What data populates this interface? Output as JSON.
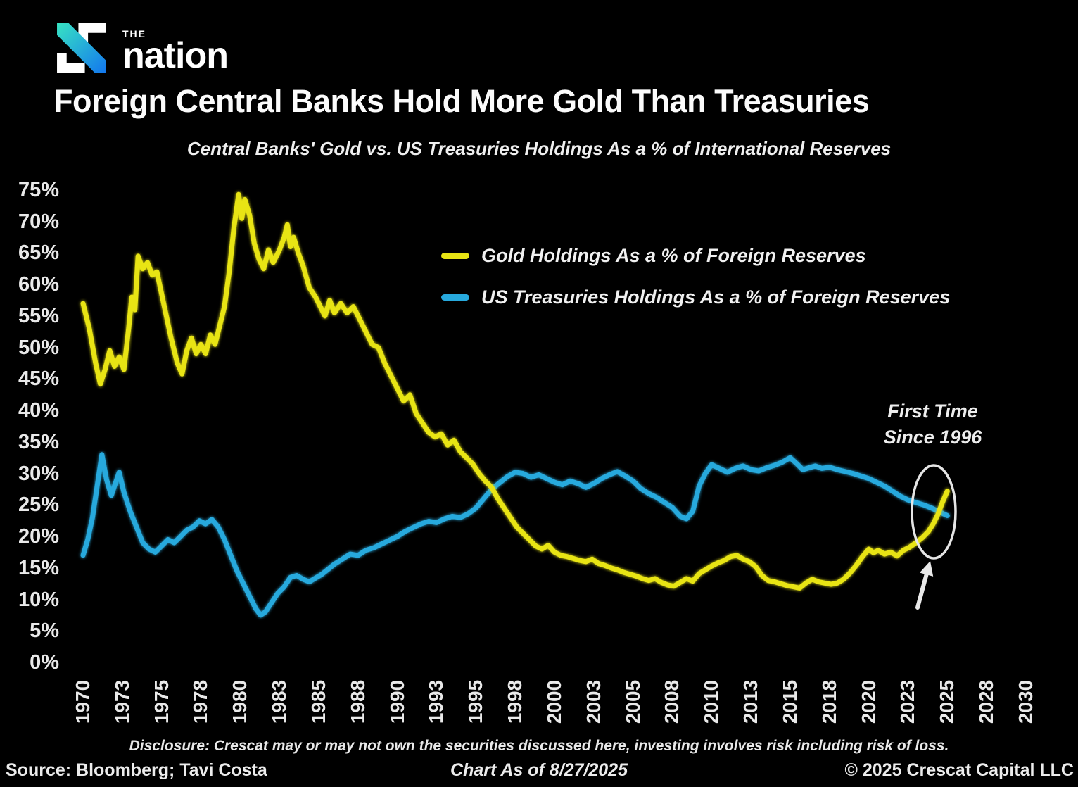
{
  "logo": {
    "the": "THE",
    "name": "nation"
  },
  "header": {
    "title": "Foreign Central Banks Hold More Gold Than Treasuries",
    "subtitle": "Central Banks' Gold vs. US Treasuries Holdings As a % of International Reserves"
  },
  "legend": [
    {
      "label": "Gold Holdings As a % of Foreign Reserves"
    },
    {
      "label": "US Treasuries Holdings As a % of Foreign Reserves"
    }
  ],
  "annotation": {
    "line1": "First Time",
    "line2": "Since 1996"
  },
  "footer": {
    "disclosure": "Disclosure: Crescat may or may not own the securities discussed here, investing involves risk including risk of loss.",
    "source": "Source: Bloomberg; Tavi Costa",
    "as_of": "Chart As of 8/27/2025",
    "copyright": "© 2025 Crescat Capital LLC"
  },
  "colors": {
    "background": "#000000",
    "text": "#f2f2f2",
    "gold": "#e8e414",
    "treasuries": "#27a9dd",
    "annotation": "#e5e5e5"
  },
  "chart_data": {
    "type": "line",
    "title": "Central Banks' Gold vs. US Treasuries Holdings As a % of International Reserves",
    "xlabel": "",
    "ylabel": "",
    "xlim": [
      1970,
      2030
    ],
    "ylim": [
      0,
      75
    ],
    "grid": false,
    "legend_position": "inside-top-right",
    "x_ticks": [
      1970,
      1973,
      1975,
      1978,
      1980,
      1983,
      1985,
      1988,
      1990,
      1993,
      1995,
      1998,
      2000,
      2003,
      2005,
      2008,
      2010,
      2013,
      2015,
      2018,
      2020,
      2023,
      2025,
      2028,
      2030
    ],
    "y_ticks": [
      75,
      70,
      65,
      60,
      55,
      50,
      45,
      40,
      35,
      30,
      25,
      20,
      15,
      10,
      5,
      0
    ],
    "y_tick_format": "percent",
    "annotation": {
      "text": "First Time Since 1996",
      "x": 2024.5,
      "y": 23.9,
      "marker": "ellipse-and-arrow"
    },
    "series": [
      {
        "name": "Gold Holdings As a % of Foreign Reserves",
        "color": "#e8e414",
        "points": [
          [
            1970.0,
            57
          ],
          [
            1970.4,
            53
          ],
          [
            1970.8,
            47.5
          ],
          [
            1971.1,
            44.2
          ],
          [
            1971.4,
            46.5
          ],
          [
            1971.7,
            49.5
          ],
          [
            1972.0,
            47
          ],
          [
            1972.3,
            48.5
          ],
          [
            1972.6,
            46.5
          ],
          [
            1972.9,
            53
          ],
          [
            1973.1,
            58
          ],
          [
            1973.3,
            56
          ],
          [
            1973.5,
            64.5
          ],
          [
            1973.8,
            62.5
          ],
          [
            1974.1,
            63.5
          ],
          [
            1974.4,
            61.5
          ],
          [
            1974.7,
            62
          ],
          [
            1975.0,
            58.5
          ],
          [
            1975.3,
            55
          ],
          [
            1975.6,
            51.5
          ],
          [
            1976.0,
            47.5
          ],
          [
            1976.3,
            45.8
          ],
          [
            1976.6,
            49.5
          ],
          [
            1976.9,
            51.5
          ],
          [
            1977.2,
            49
          ],
          [
            1977.5,
            50.5
          ],
          [
            1977.8,
            49
          ],
          [
            1978.1,
            52
          ],
          [
            1978.4,
            50.5
          ],
          [
            1978.7,
            53.5
          ],
          [
            1979.0,
            56.5
          ],
          [
            1979.3,
            62
          ],
          [
            1979.6,
            69
          ],
          [
            1979.9,
            74.3
          ],
          [
            1980.1,
            70.5
          ],
          [
            1980.3,
            73.5
          ],
          [
            1980.6,
            71
          ],
          [
            1980.9,
            66.5
          ],
          [
            1981.2,
            64
          ],
          [
            1981.5,
            62.5
          ],
          [
            1981.8,
            65.5
          ],
          [
            1982.1,
            63.5
          ],
          [
            1982.5,
            65.5
          ],
          [
            1982.8,
            67.5
          ],
          [
            1983.0,
            69.5
          ],
          [
            1983.2,
            66
          ],
          [
            1983.4,
            67.5
          ],
          [
            1983.7,
            65
          ],
          [
            1984.0,
            63
          ],
          [
            1984.4,
            59.5
          ],
          [
            1984.8,
            58
          ],
          [
            1985.1,
            56.5
          ],
          [
            1985.4,
            55
          ],
          [
            1985.7,
            57.5
          ],
          [
            1986.0,
            55.5
          ],
          [
            1986.4,
            57
          ],
          [
            1986.8,
            55.5
          ],
          [
            1987.2,
            56.5
          ],
          [
            1987.6,
            54.5
          ],
          [
            1988.0,
            52.5
          ],
          [
            1988.4,
            50.5
          ],
          [
            1988.8,
            50
          ],
          [
            1989.2,
            47.5
          ],
          [
            1989.6,
            45.5
          ],
          [
            1990.0,
            43.5
          ],
          [
            1990.4,
            41.5
          ],
          [
            1990.8,
            42.5
          ],
          [
            1991.2,
            39.5
          ],
          [
            1991.6,
            38
          ],
          [
            1992.0,
            36.5
          ],
          [
            1992.4,
            35.8
          ],
          [
            1992.8,
            36.3
          ],
          [
            1993.2,
            34.5
          ],
          [
            1993.6,
            35.3
          ],
          [
            1994.0,
            33.5
          ],
          [
            1994.4,
            32.5
          ],
          [
            1994.8,
            31.5
          ],
          [
            1995.2,
            30
          ],
          [
            1995.6,
            28.8
          ],
          [
            1996.0,
            27.8
          ],
          [
            1996.4,
            26
          ],
          [
            1996.8,
            24.5
          ],
          [
            1997.2,
            23
          ],
          [
            1997.6,
            21.5
          ],
          [
            1998.0,
            20.5
          ],
          [
            1998.4,
            19.5
          ],
          [
            1998.8,
            18.5
          ],
          [
            1999.2,
            18
          ],
          [
            1999.6,
            18.6
          ],
          [
            2000.0,
            17.5
          ],
          [
            2000.4,
            17
          ],
          [
            2000.8,
            16.8
          ],
          [
            2001.2,
            16.5
          ],
          [
            2001.6,
            16.2
          ],
          [
            2002.0,
            16
          ],
          [
            2002.4,
            16.4
          ],
          [
            2002.8,
            15.7
          ],
          [
            2003.2,
            15.4
          ],
          [
            2003.6,
            15
          ],
          [
            2004.0,
            14.7
          ],
          [
            2004.4,
            14.3
          ],
          [
            2004.8,
            14
          ],
          [
            2005.2,
            13.7
          ],
          [
            2005.6,
            13.3
          ],
          [
            2006.0,
            13
          ],
          [
            2006.4,
            13.3
          ],
          [
            2006.8,
            12.7
          ],
          [
            2007.2,
            12.3
          ],
          [
            2007.6,
            12.1
          ],
          [
            2008.0,
            12.7
          ],
          [
            2008.4,
            13.3
          ],
          [
            2008.8,
            12.9
          ],
          [
            2009.2,
            14.1
          ],
          [
            2009.6,
            14.7
          ],
          [
            2010.0,
            15.3
          ],
          [
            2010.4,
            15.8
          ],
          [
            2010.8,
            16.2
          ],
          [
            2011.2,
            16.8
          ],
          [
            2011.6,
            17
          ],
          [
            2012.0,
            16.4
          ],
          [
            2012.4,
            16
          ],
          [
            2012.8,
            15.2
          ],
          [
            2013.2,
            13.8
          ],
          [
            2013.6,
            13
          ],
          [
            2014.0,
            12.8
          ],
          [
            2014.4,
            12.5
          ],
          [
            2014.8,
            12.2
          ],
          [
            2015.2,
            12
          ],
          [
            2015.6,
            11.8
          ],
          [
            2016.0,
            12.6
          ],
          [
            2016.4,
            13.2
          ],
          [
            2016.8,
            12.8
          ],
          [
            2017.2,
            12.6
          ],
          [
            2017.6,
            12.4
          ],
          [
            2018.0,
            12.6
          ],
          [
            2018.4,
            13.2
          ],
          [
            2018.8,
            14.2
          ],
          [
            2019.2,
            15.4
          ],
          [
            2019.6,
            16.8
          ],
          [
            2020.0,
            18
          ],
          [
            2020.3,
            17.4
          ],
          [
            2020.6,
            17.8
          ],
          [
            2021.0,
            17.2
          ],
          [
            2021.4,
            17.5
          ],
          [
            2021.8,
            16.9
          ],
          [
            2022.2,
            17.8
          ],
          [
            2022.6,
            18.3
          ],
          [
            2023.0,
            19
          ],
          [
            2023.4,
            19.8
          ],
          [
            2023.8,
            20.8
          ],
          [
            2024.1,
            22
          ],
          [
            2024.4,
            23.5
          ],
          [
            2024.7,
            25.5
          ],
          [
            2025.0,
            27.2
          ]
        ]
      },
      {
        "name": "US Treasuries Holdings As a % of Foreign Reserves",
        "color": "#27a9dd",
        "points": [
          [
            1970.0,
            17
          ],
          [
            1970.3,
            19.5
          ],
          [
            1970.6,
            23
          ],
          [
            1970.9,
            28
          ],
          [
            1971.2,
            33
          ],
          [
            1971.5,
            29
          ],
          [
            1971.8,
            26.5
          ],
          [
            1972.0,
            28
          ],
          [
            1972.3,
            30.2
          ],
          [
            1972.6,
            27
          ],
          [
            1973.0,
            24
          ],
          [
            1973.4,
            21.5
          ],
          [
            1973.8,
            19
          ],
          [
            1974.2,
            18
          ],
          [
            1974.6,
            17.5
          ],
          [
            1975.0,
            18.5
          ],
          [
            1975.4,
            19.5
          ],
          [
            1975.8,
            19
          ],
          [
            1976.2,
            20
          ],
          [
            1976.6,
            21
          ],
          [
            1977.0,
            21.5
          ],
          [
            1977.4,
            22.5
          ],
          [
            1977.8,
            22
          ],
          [
            1978.2,
            22.7
          ],
          [
            1978.6,
            21.5
          ],
          [
            1979.0,
            19.5
          ],
          [
            1979.4,
            17
          ],
          [
            1979.8,
            14.5
          ],
          [
            1980.2,
            12.5
          ],
          [
            1980.6,
            10.5
          ],
          [
            1981.0,
            8.5
          ],
          [
            1981.3,
            7.5
          ],
          [
            1981.6,
            8
          ],
          [
            1982.0,
            9.5
          ],
          [
            1982.4,
            11
          ],
          [
            1982.8,
            12
          ],
          [
            1983.2,
            13.5
          ],
          [
            1983.6,
            13.8
          ],
          [
            1984.0,
            13.2
          ],
          [
            1984.4,
            12.8
          ],
          [
            1984.8,
            13.4
          ],
          [
            1985.2,
            14
          ],
          [
            1985.6,
            14.8
          ],
          [
            1986.0,
            15.6
          ],
          [
            1986.5,
            16.4
          ],
          [
            1987.0,
            17.2
          ],
          [
            1987.5,
            17
          ],
          [
            1988.0,
            17.8
          ],
          [
            1988.5,
            18.2
          ],
          [
            1989.0,
            18.8
          ],
          [
            1989.5,
            19.4
          ],
          [
            1990.0,
            20
          ],
          [
            1990.5,
            20.8
          ],
          [
            1991.0,
            21.4
          ],
          [
            1991.5,
            22
          ],
          [
            1992.0,
            22.4
          ],
          [
            1992.5,
            22.2
          ],
          [
            1993.0,
            22.8
          ],
          [
            1993.5,
            23.2
          ],
          [
            1994.0,
            23
          ],
          [
            1994.5,
            23.6
          ],
          [
            1995.0,
            24.5
          ],
          [
            1995.5,
            26
          ],
          [
            1996.0,
            27.5
          ],
          [
            1996.5,
            28.5
          ],
          [
            1997.0,
            29.5
          ],
          [
            1997.5,
            30.2
          ],
          [
            1998.0,
            30
          ],
          [
            1998.5,
            29.4
          ],
          [
            1999.0,
            29.8
          ],
          [
            1999.5,
            29.2
          ],
          [
            2000.0,
            28.6
          ],
          [
            2000.5,
            28.2
          ],
          [
            2001.0,
            28.8
          ],
          [
            2001.5,
            28.4
          ],
          [
            2002.0,
            27.8
          ],
          [
            2002.5,
            28.4
          ],
          [
            2003.0,
            29.2
          ],
          [
            2003.5,
            29.8
          ],
          [
            2004.0,
            30.3
          ],
          [
            2004.5,
            29.6
          ],
          [
            2005.0,
            28.8
          ],
          [
            2005.5,
            27.6
          ],
          [
            2006.0,
            26.8
          ],
          [
            2006.5,
            26.2
          ],
          [
            2007.0,
            25.4
          ],
          [
            2007.5,
            24.6
          ],
          [
            2008.0,
            23.2
          ],
          [
            2008.4,
            22.8
          ],
          [
            2008.8,
            24
          ],
          [
            2009.2,
            28
          ],
          [
            2009.6,
            30
          ],
          [
            2010.0,
            31.4
          ],
          [
            2010.5,
            30.8
          ],
          [
            2011.0,
            30.2
          ],
          [
            2011.5,
            30.8
          ],
          [
            2012.0,
            31.2
          ],
          [
            2012.5,
            30.6
          ],
          [
            2013.0,
            30.4
          ],
          [
            2013.5,
            30.9
          ],
          [
            2014.0,
            31.3
          ],
          [
            2014.5,
            31.8
          ],
          [
            2015.0,
            32.5
          ],
          [
            2015.4,
            31.6
          ],
          [
            2015.8,
            30.6
          ],
          [
            2016.2,
            30.9
          ],
          [
            2016.6,
            31.2
          ],
          [
            2017.0,
            30.8
          ],
          [
            2017.5,
            31
          ],
          [
            2018.0,
            30.6
          ],
          [
            2018.5,
            30.3
          ],
          [
            2019.0,
            30
          ],
          [
            2019.5,
            29.6
          ],
          [
            2020.0,
            29.2
          ],
          [
            2020.5,
            28.6
          ],
          [
            2021.0,
            28
          ],
          [
            2021.5,
            27.2
          ],
          [
            2022.0,
            26.4
          ],
          [
            2022.5,
            25.8
          ],
          [
            2023.0,
            25.4
          ],
          [
            2023.5,
            25
          ],
          [
            2024.0,
            24.5
          ],
          [
            2024.5,
            23.9
          ],
          [
            2025.0,
            23.3
          ]
        ]
      }
    ]
  }
}
